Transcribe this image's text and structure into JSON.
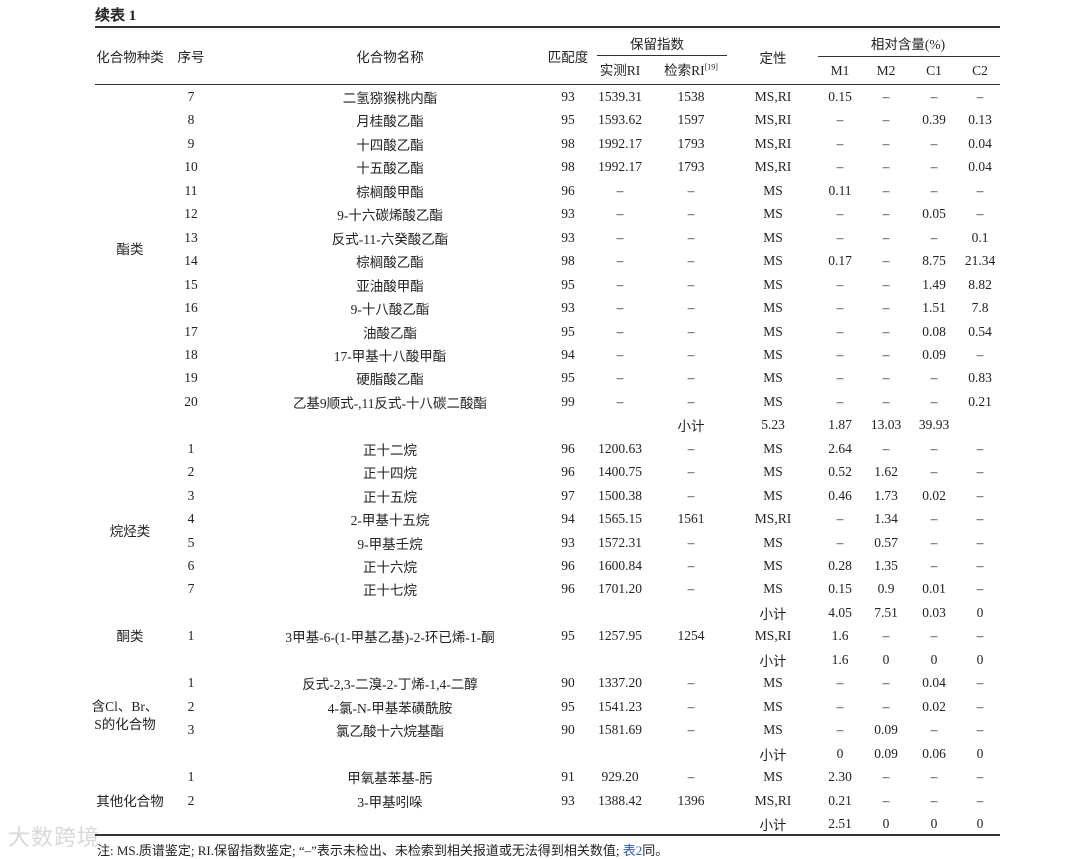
{
  "title": "续表 1",
  "header": {
    "category": "化合物种类",
    "seq": "序号",
    "name": "化合物名称",
    "match": "匹配度",
    "ri_group": "保留指数",
    "ri_measured": "实测RI",
    "ri_retrieved": "检索RI",
    "ri_retrieved_ref": "[19]",
    "qualitative": "定性",
    "content_group": "相对含量(%)",
    "m1": "M1",
    "m2": "M2",
    "c1": "C1",
    "c2": "C2"
  },
  "categories": [
    {
      "label": "酯类"
    },
    {
      "label": "烷烃类"
    },
    {
      "label": "酮类"
    },
    {
      "label_line1": "含Cl、Br、",
      "label_line2": "S的化合物"
    },
    {
      "label": "其他化合物"
    }
  ],
  "rows": [
    [
      "7",
      "二氢猕猴桃内酯",
      "93",
      "1539.31",
      "1538",
      "MS,RI",
      "0.15",
      "–",
      "–",
      "–"
    ],
    [
      "8",
      "月桂酸乙酯",
      "95",
      "1593.62",
      "1597",
      "MS,RI",
      "–",
      "–",
      "0.39",
      "0.13"
    ],
    [
      "9",
      "十四酸乙酯",
      "98",
      "1992.17",
      "1793",
      "MS,RI",
      "–",
      "–",
      "–",
      "0.04"
    ],
    [
      "10",
      "十五酸乙酯",
      "98",
      "1992.17",
      "1793",
      "MS,RI",
      "–",
      "–",
      "–",
      "0.04"
    ],
    [
      "11",
      "棕榈酸甲酯",
      "96",
      "–",
      "–",
      "MS",
      "0.11",
      "–",
      "–",
      "–"
    ],
    [
      "12",
      "9-十六碳烯酸乙酯",
      "93",
      "–",
      "–",
      "MS",
      "–",
      "–",
      "0.05",
      "–"
    ],
    [
      "13",
      "反式-11-六癸酸乙酯",
      "93",
      "–",
      "–",
      "MS",
      "–",
      "–",
      "–",
      "0.1"
    ],
    [
      "14",
      "棕榈酸乙酯",
      "98",
      "–",
      "–",
      "MS",
      "0.17",
      "–",
      "8.75",
      "21.34"
    ],
    [
      "15",
      "亚油酸甲酯",
      "95",
      "–",
      "–",
      "MS",
      "–",
      "–",
      "1.49",
      "8.82"
    ],
    [
      "16",
      "9-十八酸乙酯",
      "93",
      "–",
      "–",
      "MS",
      "–",
      "–",
      "1.51",
      "7.8"
    ],
    [
      "17",
      "油酸乙酯",
      "95",
      "–",
      "–",
      "MS",
      "–",
      "–",
      "0.08",
      "0.54"
    ],
    [
      "18",
      "17-甲基十八酸甲酯",
      "94",
      "–",
      "–",
      "MS",
      "–",
      "–",
      "0.09",
      "–"
    ],
    [
      "19",
      "硬脂酸乙酯",
      "95",
      "–",
      "–",
      "MS",
      "–",
      "–",
      "–",
      "0.83"
    ],
    [
      "20",
      "乙基9顺式-,11反式-十八碳二酸酯",
      "99",
      "–",
      "–",
      "MS",
      "–",
      "–",
      "–",
      "0.21"
    ],
    [
      "",
      "",
      "",
      "",
      "小计",
      "5.23",
      "1.87",
      "13.03",
      "39.93",
      ""
    ],
    [
      "1",
      "正十二烷",
      "96",
      "1200.63",
      "–",
      "MS",
      "2.64",
      "–",
      "–",
      "–"
    ],
    [
      "2",
      "正十四烷",
      "96",
      "1400.75",
      "–",
      "MS",
      "0.52",
      "1.62",
      "–",
      "–"
    ],
    [
      "3",
      "正十五烷",
      "97",
      "1500.38",
      "–",
      "MS",
      "0.46",
      "1.73",
      "0.02",
      "–"
    ],
    [
      "4",
      "2-甲基十五烷",
      "94",
      "1565.15",
      "1561",
      "MS,RI",
      "–",
      "1.34",
      "–",
      "–"
    ],
    [
      "5",
      "9-甲基壬烷",
      "93",
      "1572.31",
      "–",
      "MS",
      "–",
      "0.57",
      "–",
      "–"
    ],
    [
      "6",
      "正十六烷",
      "96",
      "1600.84",
      "–",
      "MS",
      "0.28",
      "1.35",
      "–",
      "–"
    ],
    [
      "7",
      "正十七烷",
      "96",
      "1701.20",
      "–",
      "MS",
      "0.15",
      "0.9",
      "0.01",
      "–"
    ],
    [
      "",
      "",
      "",
      "",
      "",
      "小计",
      "4.05",
      "7.51",
      "0.03",
      "0"
    ],
    [
      "1",
      "3甲基-6-(1-甲基乙基)-2-环已烯-1-酮",
      "95",
      "1257.95",
      "1254",
      "MS,RI",
      "1.6",
      "–",
      "–",
      "–"
    ],
    [
      "",
      "",
      "",
      "",
      "",
      "小计",
      "1.6",
      "0",
      "0",
      "0"
    ],
    [
      "1",
      "反式-2,3-二溴-2-丁烯-1,4-二醇",
      "90",
      "1337.20",
      "–",
      "MS",
      "–",
      "–",
      "0.04",
      "–"
    ],
    [
      "2",
      "4-氯-N-甲基苯磺酰胺",
      "95",
      "1541.23",
      "–",
      "MS",
      "–",
      "–",
      "0.02",
      "–"
    ],
    [
      "3",
      "氯乙酸十六烷基酯",
      "90",
      "1581.69",
      "–",
      "MS",
      "–",
      "0.09",
      "–",
      "–"
    ],
    [
      "",
      "",
      "",
      "",
      "",
      "小计",
      "0",
      "0.09",
      "0.06",
      "0"
    ],
    [
      "1",
      "甲氧基苯基-肟",
      "91",
      "929.20",
      "–",
      "MS",
      "2.30",
      "–",
      "–",
      "–"
    ],
    [
      "2",
      "3-甲基吲哚",
      "93",
      "1388.42",
      "1396",
      "MS,RI",
      "0.21",
      "–",
      "–",
      "–"
    ],
    [
      "",
      "",
      "",
      "",
      "",
      "小计",
      "2.51",
      "0",
      "0",
      "0"
    ]
  ],
  "note": {
    "text": "注: MS.质谱鉴定; RI.保留指数鉴定; “–”表示未检出、未检索到相关报道或无法得到相关数值; ",
    "ref": "表2",
    "tail": "同。"
  },
  "watermark": "大数跨境"
}
